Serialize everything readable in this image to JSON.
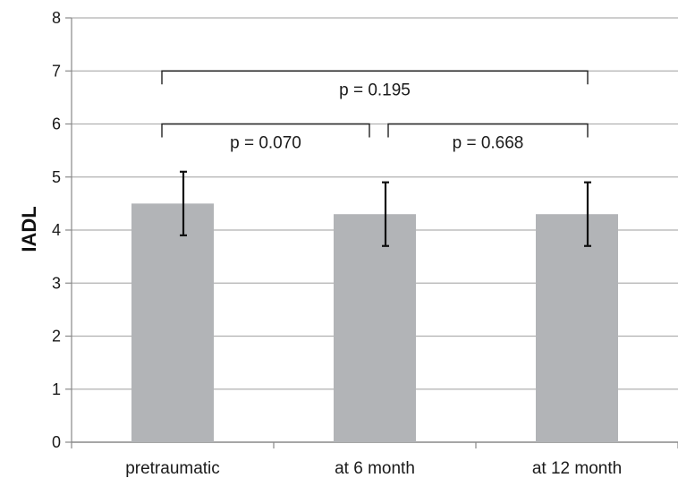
{
  "chart_data": {
    "type": "bar",
    "title": "",
    "xlabel": "",
    "ylabel": "IADL",
    "ylim": [
      0,
      8
    ],
    "yticks": [
      0,
      1,
      2,
      3,
      4,
      5,
      6,
      7,
      8
    ],
    "grid": true,
    "categories": [
      "pretraumatic",
      "at 6 month",
      "at 12 month"
    ],
    "values": [
      4.5,
      4.3,
      4.3
    ],
    "error_bars": [
      {
        "low": 3.9,
        "high": 5.1
      },
      {
        "low": 3.7,
        "high": 4.9
      },
      {
        "low": 3.7,
        "high": 4.9
      }
    ],
    "bar_color": "#b2b4b7",
    "grid_color": "#b0b0b0",
    "comparisons": [
      {
        "from": "pretraumatic",
        "to": "at 12 month",
        "label": "p = 0.195",
        "level": 7.0
      },
      {
        "from": "pretraumatic",
        "to": "at 6 month",
        "label": "p = 0.070",
        "level": 6.0
      },
      {
        "from": "at 6 month",
        "to": "at 12 month",
        "label": "p = 0.668",
        "level": 6.0
      }
    ]
  }
}
